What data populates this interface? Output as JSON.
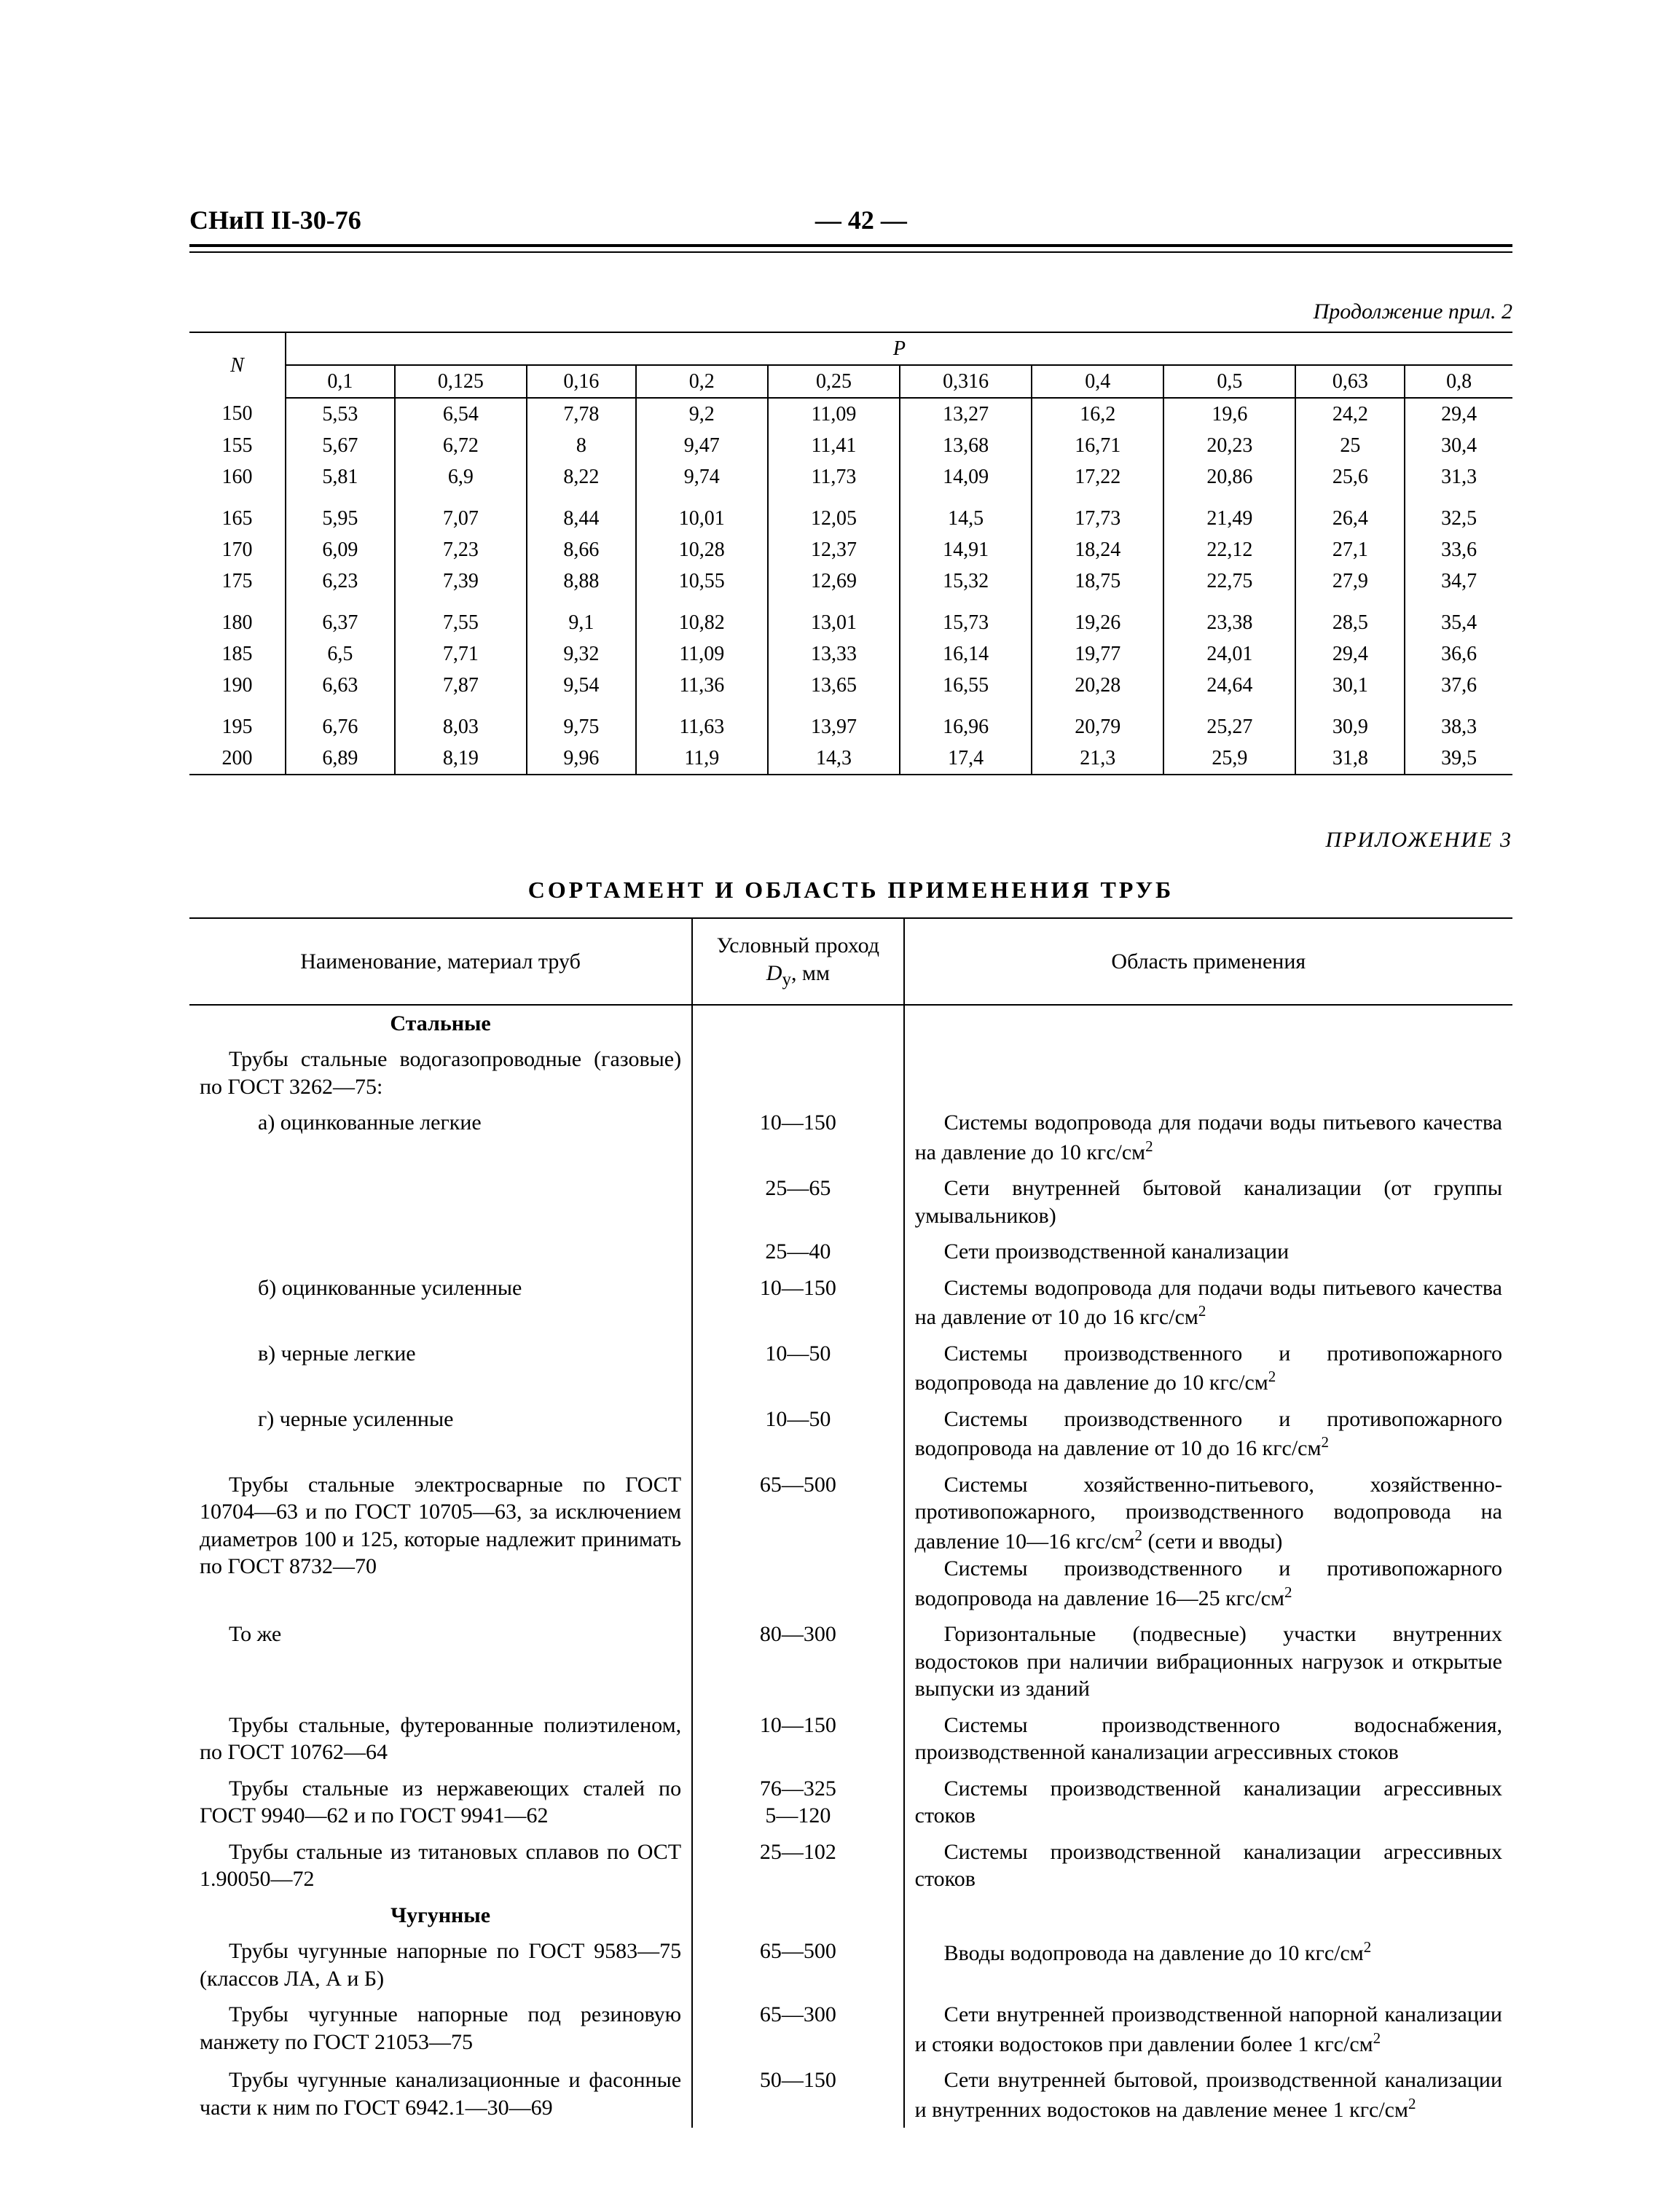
{
  "header": {
    "doc_code": "СНиП II-30-76",
    "page_number_display": "— 42 —"
  },
  "table_p": {
    "continuation_label": "Продолжение прил. 2",
    "n_header": "N",
    "p_header": "P",
    "p_columns": [
      "0,1",
      "0,125",
      "0,16",
      "0,2",
      "0,25",
      "0,316",
      "0,4",
      "0,5",
      "0,63",
      "0,8"
    ],
    "groups": [
      {
        "rows": [
          [
            "150",
            "5,53",
            "6,54",
            "7,78",
            "9,2",
            "11,09",
            "13,27",
            "16,2",
            "19,6",
            "24,2",
            "29,4"
          ],
          [
            "155",
            "5,67",
            "6,72",
            "8",
            "9,47",
            "11,41",
            "13,68",
            "16,71",
            "20,23",
            "25",
            "30,4"
          ],
          [
            "160",
            "5,81",
            "6,9",
            "8,22",
            "9,74",
            "11,73",
            "14,09",
            "17,22",
            "20,86",
            "25,6",
            "31,3"
          ]
        ]
      },
      {
        "rows": [
          [
            "165",
            "5,95",
            "7,07",
            "8,44",
            "10,01",
            "12,05",
            "14,5",
            "17,73",
            "21,49",
            "26,4",
            "32,5"
          ],
          [
            "170",
            "6,09",
            "7,23",
            "8,66",
            "10,28",
            "12,37",
            "14,91",
            "18,24",
            "22,12",
            "27,1",
            "33,6"
          ],
          [
            "175",
            "6,23",
            "7,39",
            "8,88",
            "10,55",
            "12,69",
            "15,32",
            "18,75",
            "22,75",
            "27,9",
            "34,7"
          ]
        ]
      },
      {
        "rows": [
          [
            "180",
            "6,37",
            "7,55",
            "9,1",
            "10,82",
            "13,01",
            "15,73",
            "19,26",
            "23,38",
            "28,5",
            "35,4"
          ],
          [
            "185",
            "6,5",
            "7,71",
            "9,32",
            "11,09",
            "13,33",
            "16,14",
            "19,77",
            "24,01",
            "29,4",
            "36,6"
          ],
          [
            "190",
            "6,63",
            "7,87",
            "9,54",
            "11,36",
            "13,65",
            "16,55",
            "20,28",
            "24,64",
            "30,1",
            "37,6"
          ]
        ]
      },
      {
        "rows": [
          [
            "195",
            "6,76",
            "8,03",
            "9,75",
            "11,63",
            "13,97",
            "16,96",
            "20,79",
            "25,27",
            "30,9",
            "38,3"
          ],
          [
            "200",
            "6,89",
            "8,19",
            "9,96",
            "11,9",
            "14,3",
            "17,4",
            "21,3",
            "25,9",
            "31,8",
            "39,5"
          ]
        ]
      }
    ]
  },
  "appendix3": {
    "label": "ПРИЛОЖЕНИЕ 3",
    "title": "СОРТАМЕНТ И ОБЛАСТЬ ПРИМЕНЕНИЯ ТРУБ",
    "headers": {
      "name": "Наименование, материал труб",
      "dy_html": "Условный проход<br><i>D</i><sub>у</sub>, мм",
      "scope": "Область применения"
    },
    "sections": [
      {
        "heading": "Стальные",
        "rows": [
          {
            "name_html": "<span class='indent1'>Трубы стальные водогазопроводные (газо­вые) по ГОСТ 3262—75:</span>",
            "dy": "",
            "scope_html": ""
          },
          {
            "name_html": "<span class='indent2'>а) оцинкованные легкие</span>",
            "dy": "10—150",
            "scope_html": "<span class='indent-app'>Системы водопровода для подачи воды питье­вого качества на давление до 10 кгс/см<sup>2</sup></span>"
          },
          {
            "name_html": "",
            "dy": "25—65",
            "scope_html": "<span class='indent-app'>Сети внутренней бытовой канализации (от груп­пы умывальников)</span>"
          },
          {
            "name_html": "",
            "dy": "25—40",
            "scope_html": "<span class='indent-app'>Сети производственной канализации</span>"
          },
          {
            "name_html": "<span class='indent2'>б) оцинкованные усиленные</span>",
            "dy": "10—150",
            "scope_html": "<span class='indent-app'>Системы водопровода для подачи воды питье­вого качества на давление от 10 до 16 кгс/см<sup>2</sup></span>"
          },
          {
            "name_html": "<span class='indent2'>в) черные легкие</span>",
            "dy": "10—50",
            "scope_html": "<span class='indent-app'>Системы производственного и противопожар­ного водопровода на давление до 10 кгс/см<sup>2</sup></span>"
          },
          {
            "name_html": "<span class='indent2'>г) черные усиленные</span>",
            "dy": "10—50",
            "scope_html": "<span class='indent-app'>Системы производственного и противопожар­ного водопровода на давление от 10 до 16 кгс/см<sup>2</sup></span>"
          },
          {
            "name_html": "<span class='indent1 just'>Трубы стальные электросварные по ГОСТ 10704—63 и по ГОСТ 10705—63, за исключе­нием диаметров 100 и 125, которые надлежит принимать по ГОСТ 8732—70</span>",
            "dy": "65—500",
            "scope_html": "<span class='indent-app'>Системы хозяйственно-питьевого, хозяйственно-противопожарного, производственного водопрово­да на давление 10—16 кгс/см<sup>2</sup> (сети и вводы)</span><span class='indent-app'>Системы производственного и противопожар­ного водопровода на давление 16—25 кгс/см<sup>2</sup></span>"
          },
          {
            "name_html": "<span class='indent1'>То же</span>",
            "dy": "80—300",
            "scope_html": "<span class='indent-app'>Горизонтальные (подвесные) участки внутрен­них водостоков при наличии вибрационных нагру­зок и открытые выпуски из зданий</span>"
          },
          {
            "name_html": "<span class='indent1 just'>Трубы стальные, футерованные полиэтиле­ном, по ГОСТ 10762—64</span>",
            "dy": "10—150",
            "scope_html": "<span class='indent-app'>Системы производственного водоснабжения, производственной канализации агрессивных сто­ков</span>"
          },
          {
            "name_html": "<span class='indent1 just'>Трубы стальные из нержавеющих сталей по ГОСТ 9940—62 и по ГОСТ 9941—62</span>",
            "dy": "76—325<br>5—120",
            "scope_html": "<span class='indent-app'>Системы производственной канализации агрес­сивных стоков</span>"
          },
          {
            "name_html": "<span class='indent1 just'>Трубы стальные из титановых сплавов по ОСТ 1.90050—72</span>",
            "dy": "25—102",
            "scope_html": "<span class='indent-app'>Системы производственной канализации агрес­сивных стоков</span>"
          }
        ]
      },
      {
        "heading": "Чугунные",
        "rows": [
          {
            "name_html": "<span class='indent1 just'>Трубы чугунные напорные по ГОСТ 9583—75 (классов ЛА, А и Б)</span>",
            "dy": "65—500",
            "scope_html": "<span class='indent-app'>Вводы водопровода на давление до 10 кгс/см<sup>2</sup></span>"
          },
          {
            "name_html": "<span class='indent1 just'>Трубы чугунные напорные под резиновую манжету по ГОСТ 21053—75</span>",
            "dy": "65—300",
            "scope_html": "<span class='indent-app'>Сети внутренней производственной напорной ка­нализации и стояки водостоков при давлении бо­лее 1 кгс/см<sup>2</sup></span>"
          },
          {
            "name_html": "<span class='indent1 just'>Трубы чугунные канализационные и фасон­ные части к ним по ГОСТ 6942.1—30—69</span>",
            "dy": "50—150",
            "scope_html": "<span class='indent-app'>Сети внутренней бытовой, производственной ка­нализации и внутренних водостоков на давление менее 1 кгс/см<sup>2</sup></span>"
          }
        ]
      }
    ]
  }
}
